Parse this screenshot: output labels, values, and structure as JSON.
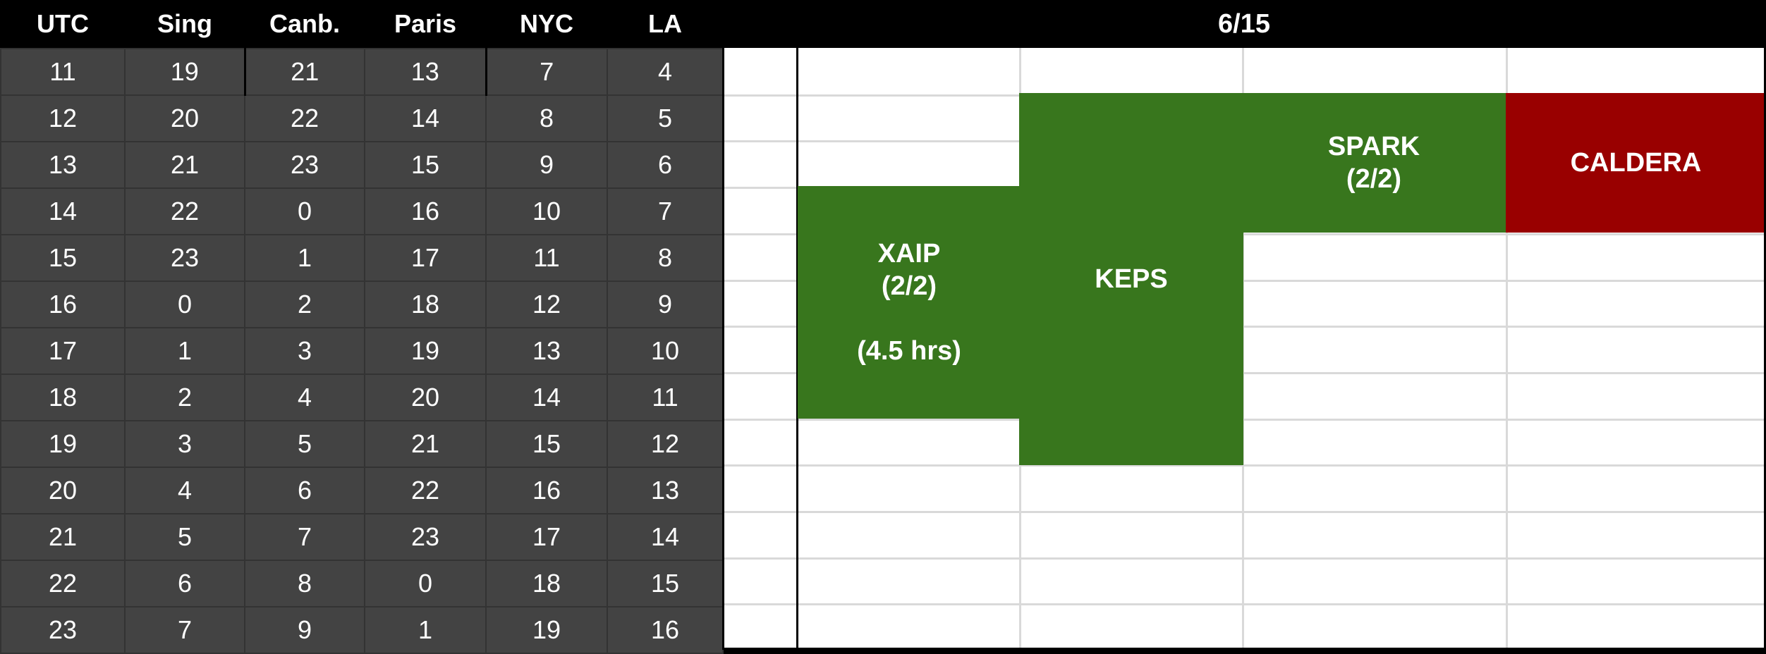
{
  "timezones": {
    "headers": [
      "UTC",
      "Sing",
      "Canb.",
      "Paris",
      "NYC",
      "LA"
    ],
    "rows": [
      [
        "11",
        "19",
        "21",
        "13",
        "7",
        "4"
      ],
      [
        "12",
        "20",
        "22",
        "14",
        "8",
        "5"
      ],
      [
        "13",
        "21",
        "23",
        "15",
        "9",
        "6"
      ],
      [
        "14",
        "22",
        "0",
        "16",
        "10",
        "7"
      ],
      [
        "15",
        "23",
        "1",
        "17",
        "11",
        "8"
      ],
      [
        "16",
        "0",
        "2",
        "18",
        "12",
        "9"
      ],
      [
        "17",
        "1",
        "3",
        "19",
        "13",
        "10"
      ],
      [
        "18",
        "2",
        "4",
        "20",
        "14",
        "11"
      ],
      [
        "19",
        "3",
        "5",
        "21",
        "15",
        "12"
      ],
      [
        "20",
        "4",
        "6",
        "22",
        "16",
        "13"
      ],
      [
        "21",
        "5",
        "7",
        "23",
        "17",
        "14"
      ],
      [
        "22",
        "6",
        "8",
        "0",
        "18",
        "15"
      ],
      [
        "23",
        "7",
        "9",
        "1",
        "19",
        "16"
      ]
    ]
  },
  "schedule": {
    "date": "6/15",
    "colors": {
      "green": "#38761d",
      "red": "#990000"
    },
    "events": [
      {
        "id": "xaip",
        "label": "XAIP",
        "status": "(2/2)",
        "duration": "(4.5 hrs)",
        "color": "#38761d"
      },
      {
        "id": "keps",
        "label": "KEPS",
        "color": "#38761d"
      },
      {
        "id": "spark",
        "label": "SPARK",
        "status": "(2/2)",
        "color": "#38761d"
      },
      {
        "id": "caldera",
        "label": "CALDERA",
        "color": "#990000"
      }
    ]
  }
}
